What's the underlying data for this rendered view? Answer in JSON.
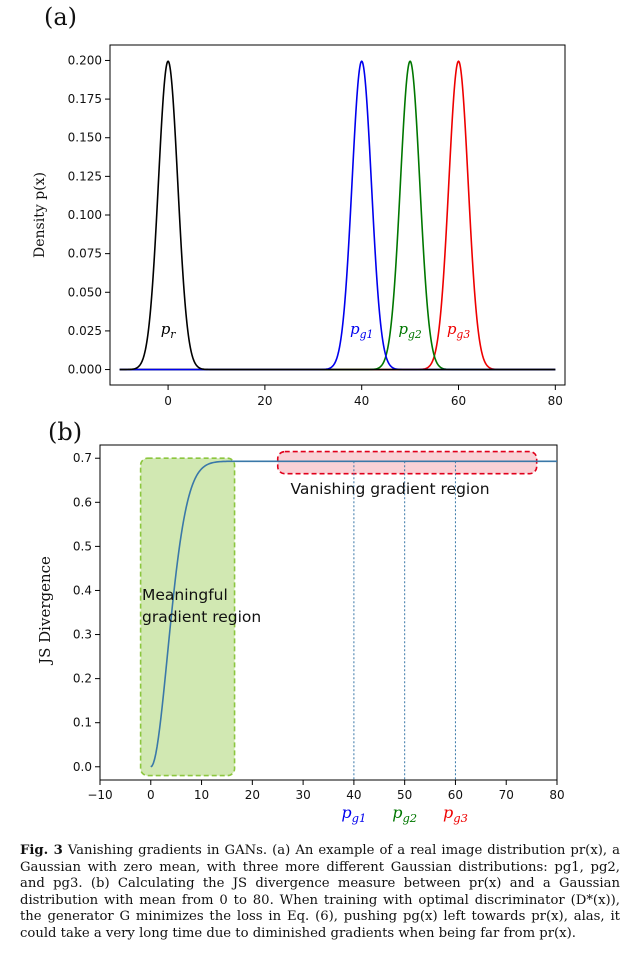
{
  "chart_data": [
    {
      "type": "line",
      "panel": "(a)",
      "title": "",
      "xlabel": "",
      "ylabel": "Density p(x)",
      "xlim": [
        -12,
        82
      ],
      "ylim": [
        -0.01,
        0.21
      ],
      "xticks": [
        "0",
        "20",
        "40",
        "60",
        "80"
      ],
      "yticks": [
        "0.000",
        "0.025",
        "0.050",
        "0.075",
        "0.100",
        "0.125",
        "0.150",
        "0.175",
        "0.200"
      ],
      "grid": false,
      "series": [
        {
          "name": "p_r",
          "mean": 0,
          "std": 2,
          "range": [
            -10,
            80
          ],
          "color": "#000000"
        },
        {
          "name": "p_g1",
          "mean": 40,
          "std": 2,
          "range": [
            -10,
            80
          ],
          "color": "#0000ee"
        },
        {
          "name": "p_g2",
          "mean": 50,
          "std": 2,
          "range": [
            -10,
            80
          ],
          "color": "#007700"
        },
        {
          "name": "p_g3",
          "mean": 60,
          "std": 2,
          "range": [
            -10,
            80
          ],
          "color": "#ee0000"
        }
      ],
      "annotations": [
        {
          "base": "p",
          "sub": "r",
          "x": 0,
          "y": 0.027,
          "color": "#000000"
        },
        {
          "base": "p",
          "sub": "g1",
          "x": 40,
          "y": 0.027,
          "color": "#0000ee"
        },
        {
          "base": "p",
          "sub": "g2",
          "x": 50,
          "y": 0.027,
          "color": "#007700"
        },
        {
          "base": "p",
          "sub": "g3",
          "x": 60,
          "y": 0.027,
          "color": "#ee0000"
        }
      ]
    },
    {
      "type": "line",
      "panel": "(b)",
      "title": "",
      "xlabel": "",
      "ylabel": "JS Divergence",
      "xlim": [
        -10,
        80
      ],
      "ylim": [
        -0.03,
        0.73
      ],
      "xticks": [
        "−10",
        "0",
        "10",
        "20",
        "30",
        "40",
        "50",
        "60",
        "70",
        "80"
      ],
      "yticks": [
        "0.0",
        "0.1",
        "0.2",
        "0.3",
        "0.4",
        "0.5",
        "0.6",
        "0.7"
      ],
      "grid": false,
      "series": [
        {
          "name": "JS divergence",
          "std": 2,
          "x_range": [
            0,
            80
          ],
          "plateau": 0.693,
          "color": "#3a78a8"
        }
      ],
      "regions": [
        {
          "label": [
            "Meaningful",
            "gradient region"
          ],
          "x": [
            -2,
            16.5
          ],
          "y": [
            -0.02,
            0.7
          ],
          "color": "#8cc63f"
        },
        {
          "label": [
            "Vanishing gradient region"
          ],
          "x": [
            25,
            76
          ],
          "y": [
            0.665,
            0.715
          ],
          "color": "#e0001b"
        }
      ],
      "markers": [
        {
          "x": 40,
          "base": "p",
          "sub": "g1",
          "color": "#0000ee"
        },
        {
          "x": 50,
          "base": "p",
          "sub": "g2",
          "color": "#007700"
        },
        {
          "x": 60,
          "base": "p",
          "sub": "g3",
          "color": "#ee0000"
        }
      ]
    }
  ],
  "caption": {
    "label": "Fig. 3",
    "text": "Vanishing gradients in GANs. (a) An example of a real image distribution pr(x), a Gaussian with zero mean, with three more different Gaussian distributions: pg1, pg2, and pg3. (b) Calculating the JS divergence measure between pr(x) and a Gaussian distribution with mean from 0 to 80. When training with optimal discriminator (D*(x)), the generator G minimizes the loss in Eq. (6), pushing pg(x) left towards pr(x), alas, it could take a very long time due to diminished gradients when being far from pr(x)."
  }
}
